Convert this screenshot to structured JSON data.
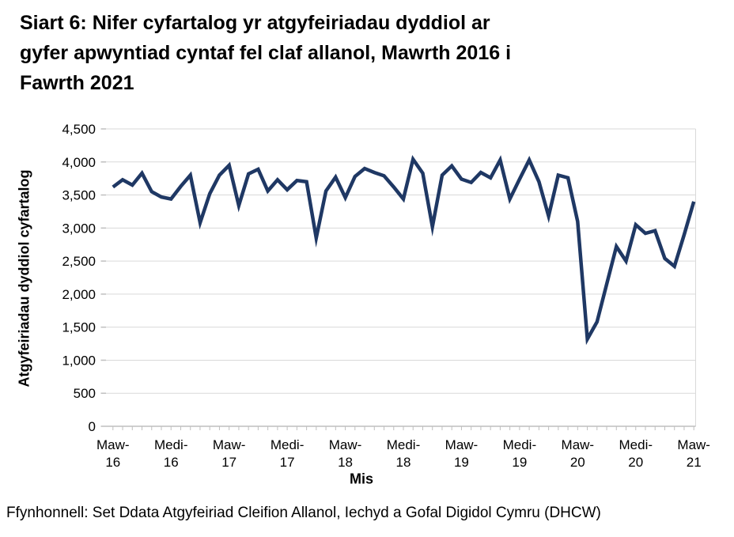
{
  "title": {
    "lines": [
      "Siart 6: Nifer cyfartalog yr atgyfeiriadau dyddiol ar",
      "gyfer apwyntiad cyntaf fel claf allanol, Mawrth 2016 i",
      "Fawrth 2021"
    ],
    "full": "Siart 6: Nifer cyfartalog yr atgyfeiriadau dyddiol ar gyfer apwyntiad cyntaf fel claf allanol, Mawrth 2016 i Fawrth 2021"
  },
  "source": "Ffynhonnell: Set Ddata Atgyfeiriad Cleifion Allanol, Iechyd a Gofal Digidol Cymru (DHCW)",
  "chart_data": {
    "type": "line",
    "title": "Siart 6: Nifer cyfartalog yr atgyfeiriadau dyddiol ar gyfer apwyntiad cyntaf fel claf allanol, Mawrth 2016 i Fawrth 2021",
    "xlabel": "Mis",
    "ylabel": "Atgyfeiriadau dyddiol cyfartalog",
    "ylim": [
      0,
      4500
    ],
    "ytick_step": 500,
    "ytick_labels": [
      "0",
      "500",
      "1,000",
      "1,500",
      "2,000",
      "2,500",
      "3,000",
      "3,500",
      "4,000",
      "4,500"
    ],
    "x_tick_labels": [
      "Maw-16",
      "Medi-16",
      "Maw-17",
      "Medi-17",
      "Maw-18",
      "Medi-18",
      "Maw-19",
      "Medi-19",
      "Maw-20",
      "Medi-20",
      "Maw-21"
    ],
    "x_tick_every_n_months": 6,
    "x_frequency": "monthly",
    "x_start": "Maw-16",
    "x_end": "Maw-21",
    "grid": "horizontal",
    "legend": "none",
    "line_color": "#1F3864",
    "grid_color": "#D9D9D9",
    "axis_color": "#BFBFBF",
    "values": [
      3620,
      3730,
      3650,
      3830,
      3550,
      3470,
      3440,
      3630,
      3800,
      3080,
      3520,
      3800,
      3950,
      3340,
      3820,
      3890,
      3560,
      3730,
      3580,
      3720,
      3700,
      2850,
      3560,
      3770,
      3460,
      3780,
      3900,
      3840,
      3790,
      3620,
      3440,
      4040,
      3830,
      3020,
      3800,
      3940,
      3740,
      3690,
      3840,
      3760,
      4030,
      3440,
      3740,
      4030,
      3700,
      3180,
      3800,
      3760,
      3100,
      1320,
      1580,
      2150,
      2720,
      2500,
      3050,
      2920,
      2960,
      2540,
      2420,
      2900,
      3400
    ]
  }
}
